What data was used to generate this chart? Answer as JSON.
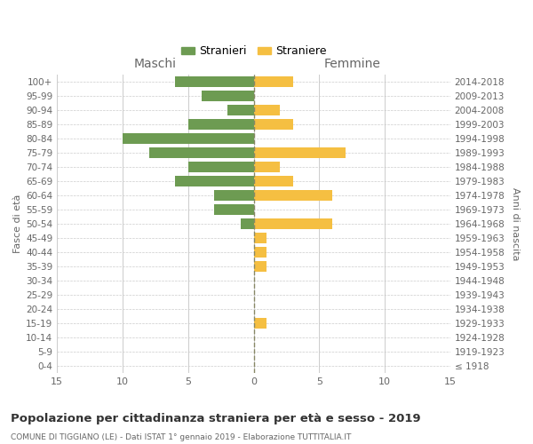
{
  "age_groups": [
    "0-4",
    "5-9",
    "10-14",
    "15-19",
    "20-24",
    "25-29",
    "30-34",
    "35-39",
    "40-44",
    "45-49",
    "50-54",
    "55-59",
    "60-64",
    "65-69",
    "70-74",
    "75-79",
    "80-84",
    "85-89",
    "90-94",
    "95-99",
    "100+"
  ],
  "birth_years": [
    "2014-2018",
    "2009-2013",
    "2004-2008",
    "1999-2003",
    "1994-1998",
    "1989-1993",
    "1984-1988",
    "1979-1983",
    "1974-1978",
    "1969-1973",
    "1964-1968",
    "1959-1963",
    "1954-1958",
    "1949-1953",
    "1944-1948",
    "1939-1943",
    "1934-1938",
    "1929-1933",
    "1924-1928",
    "1919-1923",
    "≤ 1918"
  ],
  "maschi": [
    6,
    4,
    2,
    5,
    10,
    8,
    5,
    6,
    3,
    3,
    1,
    0,
    0,
    0,
    0,
    0,
    0,
    0,
    0,
    0,
    0
  ],
  "femmine": [
    3,
    0,
    2,
    3,
    0,
    7,
    2,
    3,
    6,
    0,
    6,
    1,
    1,
    1,
    0,
    0,
    0,
    1,
    0,
    0,
    0
  ],
  "maschi_color": "#6d9b52",
  "femmine_color": "#f5bf42",
  "title": "Popolazione per cittadinanza straniera per età e sesso - 2019",
  "subtitle": "COMUNE DI TIGGIANO (LE) - Dati ISTAT 1° gennaio 2019 - Elaborazione TUTTITALIA.IT",
  "ylabel_left": "Fasce di età",
  "ylabel_right": "Anni di nascita",
  "xlabel_left": "Maschi",
  "xlabel_top_right": "Femmine",
  "legend_stranieri": "Stranieri",
  "legend_straniere": "Straniere",
  "xlim": 15,
  "background_color": "#ffffff",
  "grid_color": "#cccccc",
  "text_color": "#666666"
}
